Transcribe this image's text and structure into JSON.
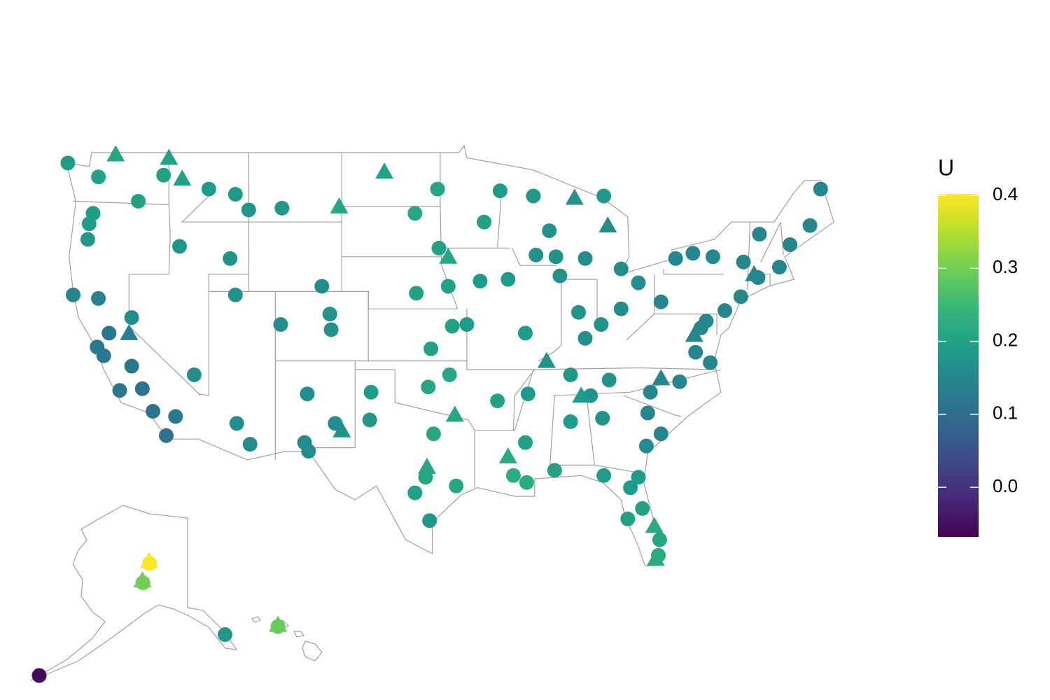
{
  "chart_data": {
    "type": "map",
    "legend_title": "U",
    "clim": [
      -0.068,
      0.402
    ],
    "colorbar_ticks": [
      {
        "value": 0,
        "label": "0.0"
      },
      0.1,
      0.2,
      0.3,
      0.4
    ],
    "colors": [
      "#440154",
      "#482878",
      "#3e4989",
      "#31688e",
      "#26828e",
      "#1f9e89",
      "#35b779",
      "#6ece58",
      "#b5de2b",
      "#fde725"
    ],
    "series": [
      {
        "marker": "circle",
        "lon": [
          -124.6,
          -122.3,
          -122.7,
          -123.0,
          -123.1,
          -117.4,
          -116.2,
          -119.3,
          -114.0,
          -111.0,
          -112.0,
          -108.5,
          -124.2,
          -122.4,
          -121.9,
          -121.5,
          -119.8,
          -118.2,
          -117.2,
          -116.5,
          -120.7,
          -119.0,
          -122.3,
          -119.8,
          -115.1,
          -111.9,
          -110.9,
          -112.0,
          -108.6,
          -104.9,
          -104.8,
          -106.6,
          -106.8,
          -104.5,
          -105.5,
          -112.4,
          -96.8,
          -93.3,
          -92.1,
          -96.7,
          -96.0,
          -98.4,
          -97.3,
          -95.7,
          -94.6,
          -97.5,
          -95.9,
          -101.8,
          -101.9,
          -97.1,
          -95.4,
          -98.5,
          -97.7,
          -97.4,
          -106.5,
          -93.6,
          -91.5,
          -90.2,
          -92.3,
          -90.1,
          -91.1,
          -88.0,
          -90.2,
          -89.4,
          -87.9,
          -87.6,
          -86.2,
          -85.7,
          -86.8,
          -90.0,
          -86.8,
          -84.4,
          -83.0,
          -81.7,
          -83.0,
          -85.7,
          -84.5,
          -80.0,
          -77.0,
          -76.6,
          -75.2,
          -74.0,
          -73.8,
          -71.1,
          -72.7,
          -70.3,
          -68.8,
          -68.0,
          -76.1,
          -78.9,
          -77.6,
          -80.8,
          -78.6,
          -77.4,
          -76.3,
          -81.0,
          -80.0,
          -81.1,
          -81.7,
          -82.5,
          -81.4,
          -80.2,
          -80.1,
          -84.3,
          -82.3,
          -85.3,
          -83.9,
          -88.4,
          -89.6,
          -84.3,
          -72.6,
          -98.5,
          -149.9,
          -151.5,
          -131.6,
          -176.6,
          -157.9
        ],
        "lat": [
          48.4,
          47.6,
          45.5,
          44.9,
          44.0,
          47.7,
          43.6,
          46.2,
          46.9,
          45.7,
          46.6,
          45.8,
          40.8,
          37.8,
          37.3,
          38.6,
          36.7,
          34.1,
          32.7,
          33.8,
          35.3,
          35.4,
          40.6,
          39.5,
          36.2,
          33.4,
          32.2,
          40.8,
          39.1,
          39.7,
          38.8,
          35.1,
          32.3,
          33.4,
          41.3,
          42.9,
          46.9,
          45.0,
          46.8,
          43.5,
          41.3,
          40.9,
          37.7,
          39.0,
          39.1,
          35.5,
          36.2,
          35.2,
          33.6,
          32.8,
          29.8,
          29.4,
          30.3,
          27.8,
          31.8,
          41.6,
          41.7,
          38.6,
          34.7,
          30.0,
          30.4,
          30.7,
          32.3,
          43.1,
          43.0,
          41.9,
          39.8,
          38.3,
          36.2,
          35.1,
          33.5,
          33.7,
          40.0,
          41.5,
          42.3,
          42.9,
          39.1,
          40.4,
          38.9,
          39.3,
          39.9,
          40.7,
          42.7,
          42.4,
          41.8,
          43.7,
          44.8,
          46.9,
          43.0,
          42.9,
          43.2,
          35.2,
          35.8,
          37.5,
          36.9,
          34.0,
          32.8,
          32.1,
          30.3,
          27.9,
          28.5,
          25.8,
          26.7,
          30.4,
          29.7,
          35.0,
          35.9,
          44.5,
          46.5,
          46.5,
          44.3,
          45.5,
          61.2,
          59.6,
          55.3,
          51.9,
          21.3
        ],
        "values": [
          0.19,
          0.2,
          0.19,
          0.19,
          0.18,
          0.2,
          0.18,
          0.2,
          0.19,
          0.18,
          0.18,
          0.18,
          0.15,
          0.12,
          0.12,
          0.12,
          0.12,
          0.11,
          0.11,
          0.12,
          0.12,
          0.11,
          0.14,
          0.16,
          0.16,
          0.16,
          0.16,
          0.17,
          0.16,
          0.17,
          0.17,
          0.16,
          0.16,
          0.16,
          0.16,
          0.17,
          0.21,
          0.2,
          0.19,
          0.2,
          0.2,
          0.2,
          0.2,
          0.2,
          0.19,
          0.21,
          0.21,
          0.19,
          0.18,
          0.21,
          0.21,
          0.2,
          0.21,
          0.18,
          0.16,
          0.19,
          0.19,
          0.19,
          0.2,
          0.22,
          0.22,
          0.2,
          0.2,
          0.17,
          0.17,
          0.17,
          0.17,
          0.17,
          0.18,
          0.19,
          0.19,
          0.17,
          0.16,
          0.16,
          0.16,
          0.16,
          0.17,
          0.15,
          0.15,
          0.15,
          0.15,
          0.15,
          0.15,
          0.15,
          0.15,
          0.15,
          0.15,
          0.15,
          0.15,
          0.15,
          0.15,
          0.15,
          0.15,
          0.15,
          0.15,
          0.15,
          0.15,
          0.16,
          0.19,
          0.2,
          0.2,
          0.22,
          0.21,
          0.19,
          0.19,
          0.17,
          0.17,
          0.17,
          0.18,
          0.18,
          0.15,
          0.21,
          0.4,
          0.3,
          0.18,
          -0.06,
          0.29
        ]
      },
      {
        "marker": "triangle",
        "lon": [
          -121.0,
          -117.0,
          -116.0,
          -100.8,
          -104.2,
          -96.0,
          -95.5,
          -97.6,
          -91.5,
          -88.6,
          -86.0,
          -80.5,
          -80.4,
          -86.5,
          -84.0,
          -120.0,
          -104.0,
          -77.5,
          -80.0,
          -73.0,
          -150.0,
          -151.6,
          -157.9
        ],
        "lat": [
          48.9,
          48.7,
          47.5,
          47.9,
          45.9,
          43.0,
          33.9,
          30.9,
          31.5,
          37.0,
          35.0,
          27.5,
          25.6,
          46.4,
          44.8,
          38.6,
          33.0,
          38.5,
          36.0,
          42.0,
          61.4,
          59.8,
          21.5
        ],
        "values": [
          0.21,
          0.2,
          0.2,
          0.2,
          0.21,
          0.21,
          0.21,
          0.21,
          0.22,
          0.17,
          0.19,
          0.22,
          0.22,
          0.17,
          0.16,
          0.13,
          0.17,
          0.15,
          0.15,
          0.15,
          0.4,
          0.3,
          0.29
        ]
      }
    ]
  }
}
